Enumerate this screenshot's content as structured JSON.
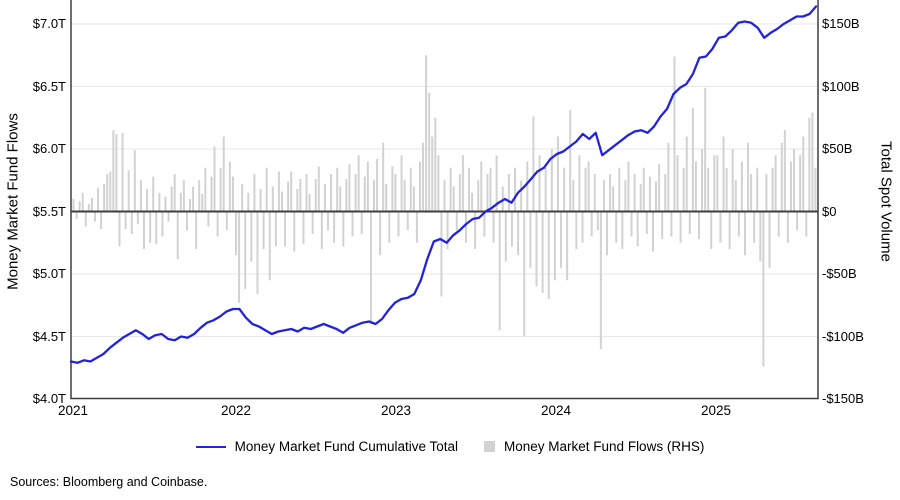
{
  "figure": {
    "source_note": "Sources: Bloomberg and Coinbase.",
    "legend": [
      {
        "label": "Money Market Fund Cumulative Total",
        "marker": "line",
        "color": "#2323dc"
      },
      {
        "label": "Money Market Fund Flows (RHS)",
        "marker": "square",
        "color": "#d2d2d2"
      }
    ]
  },
  "chart_data": {
    "type": "combo-line-bar",
    "title": "",
    "grid": "horizontal",
    "legend_position": "bottom",
    "left_axis": {
      "label": "Money Market Fund Flows",
      "unit": "$T",
      "ticks": [
        "$7.0T",
        "$6.5T",
        "$6.0T",
        "$5.5T",
        "$5.0T",
        "$4.5T",
        "$4.0T"
      ],
      "tick_values": [
        7.0,
        6.5,
        6.0,
        5.5,
        5.0,
        4.5,
        4.0
      ],
      "range": [
        4.0,
        7.0
      ]
    },
    "right_axis": {
      "label": "Total Spot Volume",
      "unit": "$B",
      "ticks": [
        "$150B",
        "$100B",
        "$50B",
        "$0",
        "-$50B",
        "-$100B",
        "-$150B"
      ],
      "tick_values": [
        150,
        100,
        50,
        0,
        -50,
        -100,
        -150
      ],
      "range": [
        -150,
        150
      ]
    },
    "x_axis": {
      "ticks": [
        "2021",
        "2022",
        "2023",
        "2024",
        "2025"
      ],
      "range_note": "Jan 2021 - Aug 2025"
    },
    "line_series": {
      "name": "Money Market Fund Cumulative Total",
      "axis": "left",
      "color": "#2323dc",
      "unit": "$T",
      "sampling": "biweekly",
      "values": [
        4.3,
        4.29,
        4.31,
        4.3,
        4.33,
        4.36,
        4.41,
        4.45,
        4.49,
        4.52,
        4.55,
        4.52,
        4.48,
        4.51,
        4.52,
        4.48,
        4.47,
        4.5,
        4.49,
        4.52,
        4.57,
        4.61,
        4.63,
        4.66,
        4.7,
        4.72,
        4.72,
        4.65,
        4.6,
        4.58,
        4.55,
        4.52,
        4.54,
        4.55,
        4.56,
        4.54,
        4.57,
        4.56,
        4.58,
        4.6,
        4.58,
        4.56,
        4.53,
        4.57,
        4.59,
        4.61,
        4.62,
        4.6,
        4.64,
        4.71,
        4.77,
        4.8,
        4.81,
        4.84,
        4.95,
        5.12,
        5.26,
        5.28,
        5.25,
        5.31,
        5.35,
        5.4,
        5.44,
        5.45,
        5.5,
        5.53,
        5.57,
        5.6,
        5.57,
        5.65,
        5.7,
        5.76,
        5.82,
        5.85,
        5.92,
        5.96,
        5.98,
        6.02,
        6.06,
        6.12,
        6.08,
        6.13,
        5.95,
        5.99,
        6.03,
        6.07,
        6.11,
        6.14,
        6.15,
        6.13,
        6.18,
        6.26,
        6.32,
        6.44,
        6.49,
        6.52,
        6.6,
        6.73,
        6.74,
        6.8,
        6.89,
        6.9,
        6.95,
        7.01,
        7.02,
        7.01,
        6.97,
        6.89,
        6.93,
        6.96,
        7.0,
        7.03,
        7.06,
        7.06,
        7.08,
        7.14
      ]
    },
    "bar_series": {
      "name": "Money Market Fund Flows (RHS)",
      "axis": "right",
      "color": "#d2d2d2",
      "unit": "$B",
      "sampling": "weekly",
      "values": [
        10,
        -6,
        8,
        15,
        -12,
        6,
        11,
        -8,
        19,
        -14,
        22,
        30,
        32,
        65,
        62,
        -28,
        63,
        -14,
        33,
        -18,
        49,
        -10,
        25,
        -30,
        18,
        -25,
        28,
        -26,
        15,
        -20,
        12,
        -8,
        20,
        30,
        -38,
        15,
        25,
        -15,
        10,
        20,
        -30,
        25,
        14,
        35,
        -12,
        28,
        52,
        -20,
        35,
        60,
        -15,
        40,
        28,
        -35,
        -73,
        22,
        -62,
        15,
        -40,
        30,
        -66,
        18,
        -30,
        35,
        -55,
        20,
        -28,
        32,
        16,
        -28,
        24,
        32,
        -32,
        18,
        26,
        -26,
        30,
        14,
        -18,
        26,
        36,
        -30,
        22,
        -15,
        30,
        -25,
        35,
        20,
        -28,
        26,
        38,
        -20,
        30,
        45,
        -18,
        28,
        40,
        -90,
        25,
        42,
        -35,
        55,
        22,
        -25,
        36,
        30,
        -20,
        45,
        25,
        -15,
        35,
        20,
        -25,
        40,
        55,
        125,
        95,
        60,
        75,
        45,
        -68,
        25,
        -30,
        35,
        20,
        -15,
        30,
        45,
        -25,
        35,
        15,
        -30,
        25,
        40,
        -20,
        30,
        35,
        -25,
        45,
        -95,
        20,
        -40,
        30,
        -28,
        35,
        -35,
        25,
        -100,
        40,
        -45,
        76,
        -60,
        45,
        -65,
        35,
        -70,
        50,
        -55,
        60,
        -45,
        35,
        -55,
        81,
        25,
        -30,
        45,
        -25,
        35,
        40,
        -20,
        30,
        -15,
        -110,
        25,
        -35,
        30,
        20,
        -25,
        35,
        -30,
        25,
        40,
        -20,
        30,
        -28,
        22,
        35,
        -18,
        28,
        -32,
        24,
        38,
        -22,
        30,
        55,
        -20,
        124,
        45,
        -25,
        35,
        60,
        -18,
        83,
        40,
        -22,
        50,
        99,
        35,
        -30,
        45,
        45,
        -25,
        60,
        35,
        -30,
        50,
        25,
        -20,
        40,
        -35,
        55,
        30,
        -25,
        35,
        -40,
        -124,
        30,
        -45,
        35,
        45,
        -20,
        55,
        65,
        -25,
        40,
        50,
        -15,
        45,
        60,
        -20,
        75,
        79,
        35
      ]
    }
  }
}
